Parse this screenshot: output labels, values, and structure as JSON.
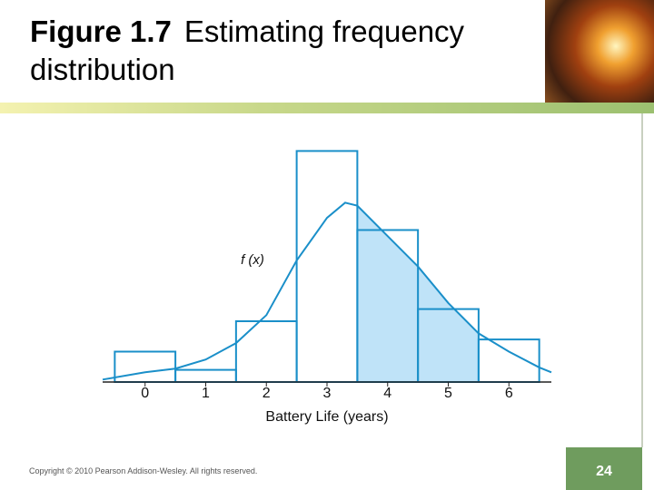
{
  "header": {
    "figure_label": "Figure 1.7",
    "title": "Estimating frequency distribution"
  },
  "chart_data": {
    "type": "histogram",
    "bins": [
      -0.5,
      0.5,
      1.5,
      2.5,
      3.5,
      4.5,
      5.5,
      6.5
    ],
    "values": [
      0.05,
      0.02,
      0.1,
      0.38,
      0.25,
      0.12,
      0.07
    ],
    "color": "#1a8fc9",
    "xlim": [
      -0.7,
      6.7
    ],
    "xticks": [
      0,
      1,
      2,
      3,
      4,
      5,
      6
    ],
    "ylim": [
      0,
      0.4
    ],
    "x_label": "Battery Life (years)",
    "curve": {
      "name": "f (x)",
      "color": "#1a8fc9",
      "x": [
        -0.7,
        0,
        0.5,
        1,
        1.5,
        2,
        2.5,
        3,
        3.3,
        3.5,
        4,
        4.5,
        5,
        5.5,
        6,
        6.5,
        6.7
      ],
      "values": [
        0.004,
        0.016,
        0.022,
        0.037,
        0.064,
        0.11,
        0.2,
        0.27,
        0.295,
        0.29,
        0.24,
        0.19,
        0.13,
        0.08,
        0.05,
        0.024,
        0.016
      ]
    },
    "shade_range": [
      3.5,
      5.5
    ],
    "shade_color": "#bfe3f8"
  },
  "footer": {
    "copyright": "Copyright © 2010 Pearson Addison-Wesley. All rights reserved.",
    "page_number": "24"
  }
}
